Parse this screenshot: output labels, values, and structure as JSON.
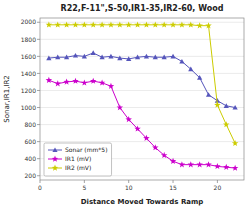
{
  "chart_data": {
    "type": "line",
    "title": "R22,F-11\",S-50,IR1-35,IR2-60, Wood",
    "x_label": "Distance Moved Towards Ramp",
    "y_label": "Sonar,IR1,IR2",
    "x": [
      1,
      2,
      3,
      4,
      5,
      6,
      7,
      8,
      9,
      10,
      11,
      12,
      13,
      14,
      15,
      16,
      17,
      18,
      19,
      20,
      21,
      22
    ],
    "series": [
      {
        "name": "Sonar (mm*5)",
        "color": "#5555bb",
        "marker": "triangle",
        "values": [
          1580,
          1590,
          1590,
          1610,
          1600,
          1640,
          1590,
          1600,
          1580,
          1570,
          1590,
          1600,
          1590,
          1590,
          1600,
          1540,
          1450,
          1350,
          1150,
          1080,
          1020,
          1000
        ]
      },
      {
        "name": "IR1 (mV)",
        "color": "#cc00cc",
        "marker": "star",
        "values": [
          1320,
          1280,
          1300,
          1310,
          1290,
          1310,
          1290,
          1250,
          1000,
          860,
          750,
          640,
          530,
          440,
          370,
          330,
          330,
          330,
          330,
          310,
          300,
          290
        ]
      },
      {
        "name": "IR2 (mV)",
        "color": "#cccc00",
        "marker": "star",
        "values": [
          1970,
          1970,
          1970,
          1970,
          1970,
          1970,
          1970,
          1970,
          1970,
          1970,
          1970,
          1970,
          1970,
          1970,
          1970,
          1970,
          1970,
          1960,
          1960,
          1030,
          800,
          580
        ]
      }
    ],
    "xlim": [
      0,
      23
    ],
    "ylim": [
      150,
      2050
    ],
    "xticks": [
      0,
      5,
      10,
      15,
      20
    ],
    "yticks": [
      200,
      400,
      600,
      800,
      1000,
      1200,
      1400,
      1600,
      1800,
      2000
    ],
    "grid": "y",
    "legend": "lower left"
  }
}
